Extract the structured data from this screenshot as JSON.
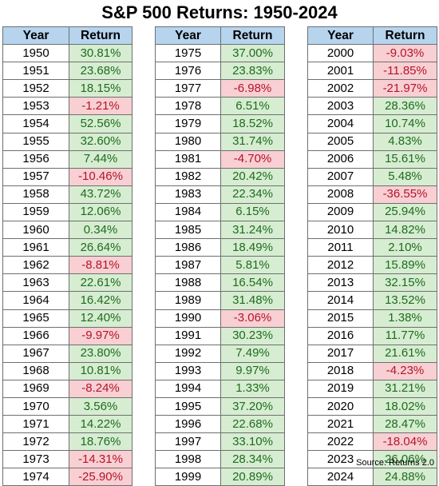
{
  "title": "S&P 500 Returns: 1950-2024",
  "headers": {
    "year": "Year",
    "return": "Return"
  },
  "source": "Source: Returns 2.0",
  "colors": {
    "header_bg": "#b7d4ee",
    "positive_bg": "#d6edd1",
    "positive_text": "#1f6b1f",
    "negative_bg": "#f8cfd3",
    "negative_text": "#b3152a"
  },
  "columns": [
    [
      {
        "year": "1950",
        "ret": "30.81%"
      },
      {
        "year": "1951",
        "ret": "23.68%"
      },
      {
        "year": "1952",
        "ret": "18.15%"
      },
      {
        "year": "1953",
        "ret": "-1.21%"
      },
      {
        "year": "1954",
        "ret": "52.56%"
      },
      {
        "year": "1955",
        "ret": "32.60%"
      },
      {
        "year": "1956",
        "ret": "7.44%"
      },
      {
        "year": "1957",
        "ret": "-10.46%"
      },
      {
        "year": "1958",
        "ret": "43.72%"
      },
      {
        "year": "1959",
        "ret": "12.06%"
      },
      {
        "year": "1960",
        "ret": "0.34%"
      },
      {
        "year": "1961",
        "ret": "26.64%"
      },
      {
        "year": "1962",
        "ret": "-8.81%"
      },
      {
        "year": "1963",
        "ret": "22.61%"
      },
      {
        "year": "1964",
        "ret": "16.42%"
      },
      {
        "year": "1965",
        "ret": "12.40%"
      },
      {
        "year": "1966",
        "ret": "-9.97%"
      },
      {
        "year": "1967",
        "ret": "23.80%"
      },
      {
        "year": "1968",
        "ret": "10.81%"
      },
      {
        "year": "1969",
        "ret": "-8.24%"
      },
      {
        "year": "1970",
        "ret": "3.56%"
      },
      {
        "year": "1971",
        "ret": "14.22%"
      },
      {
        "year": "1972",
        "ret": "18.76%"
      },
      {
        "year": "1973",
        "ret": "-14.31%"
      },
      {
        "year": "1974",
        "ret": "-25.90%"
      }
    ],
    [
      {
        "year": "1975",
        "ret": "37.00%"
      },
      {
        "year": "1976",
        "ret": "23.83%"
      },
      {
        "year": "1977",
        "ret": "-6.98%"
      },
      {
        "year": "1978",
        "ret": "6.51%"
      },
      {
        "year": "1979",
        "ret": "18.52%"
      },
      {
        "year": "1980",
        "ret": "31.74%"
      },
      {
        "year": "1981",
        "ret": "-4.70%"
      },
      {
        "year": "1982",
        "ret": "20.42%"
      },
      {
        "year": "1983",
        "ret": "22.34%"
      },
      {
        "year": "1984",
        "ret": "6.15%"
      },
      {
        "year": "1985",
        "ret": "31.24%"
      },
      {
        "year": "1986",
        "ret": "18.49%"
      },
      {
        "year": "1987",
        "ret": "5.81%"
      },
      {
        "year": "1988",
        "ret": "16.54%"
      },
      {
        "year": "1989",
        "ret": "31.48%"
      },
      {
        "year": "1990",
        "ret": "-3.06%"
      },
      {
        "year": "1991",
        "ret": "30.23%"
      },
      {
        "year": "1992",
        "ret": "7.49%"
      },
      {
        "year": "1993",
        "ret": "9.97%"
      },
      {
        "year": "1994",
        "ret": "1.33%"
      },
      {
        "year": "1995",
        "ret": "37.20%"
      },
      {
        "year": "1996",
        "ret": "22.68%"
      },
      {
        "year": "1997",
        "ret": "33.10%"
      },
      {
        "year": "1998",
        "ret": "28.34%"
      },
      {
        "year": "1999",
        "ret": "20.89%"
      }
    ],
    [
      {
        "year": "2000",
        "ret": "-9.03%"
      },
      {
        "year": "2001",
        "ret": "-11.85%"
      },
      {
        "year": "2002",
        "ret": "-21.97%"
      },
      {
        "year": "2003",
        "ret": "28.36%"
      },
      {
        "year": "2004",
        "ret": "10.74%"
      },
      {
        "year": "2005",
        "ret": "4.83%"
      },
      {
        "year": "2006",
        "ret": "15.61%"
      },
      {
        "year": "2007",
        "ret": "5.48%"
      },
      {
        "year": "2008",
        "ret": "-36.55%"
      },
      {
        "year": "2009",
        "ret": "25.94%"
      },
      {
        "year": "2010",
        "ret": "14.82%"
      },
      {
        "year": "2011",
        "ret": "2.10%"
      },
      {
        "year": "2012",
        "ret": "15.89%"
      },
      {
        "year": "2013",
        "ret": "32.15%"
      },
      {
        "year": "2014",
        "ret": "13.52%"
      },
      {
        "year": "2015",
        "ret": "1.38%"
      },
      {
        "year": "2016",
        "ret": "11.77%"
      },
      {
        "year": "2017",
        "ret": "21.61%"
      },
      {
        "year": "2018",
        "ret": "-4.23%"
      },
      {
        "year": "2019",
        "ret": "31.21%"
      },
      {
        "year": "2020",
        "ret": "18.02%"
      },
      {
        "year": "2021",
        "ret": "28.47%"
      },
      {
        "year": "2022",
        "ret": "-18.04%"
      },
      {
        "year": "2023",
        "ret": "26.06%"
      },
      {
        "year": "2024",
        "ret": "24.88%"
      }
    ]
  ]
}
